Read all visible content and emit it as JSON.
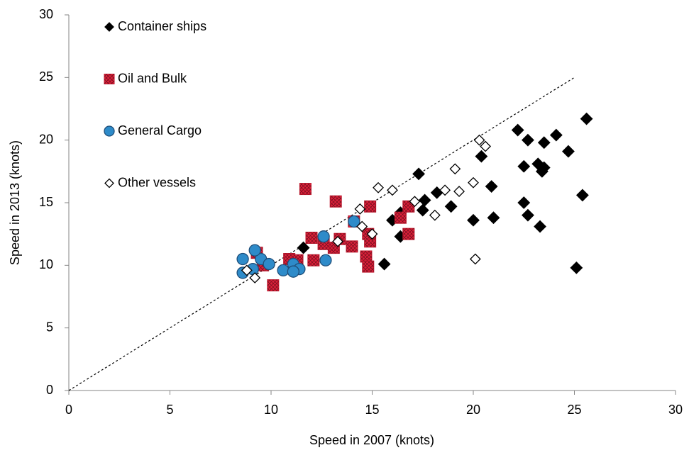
{
  "chart_data": {
    "type": "scatter",
    "xlabel": "Speed in 2007 (knots)",
    "ylabel": "Speed in 2013 (knots)",
    "xlim": [
      0,
      30
    ],
    "ylim": [
      0,
      30
    ],
    "xticks": [
      0,
      5,
      10,
      15,
      20,
      25,
      30
    ],
    "yticks": [
      0,
      5,
      10,
      15,
      20,
      25,
      30
    ],
    "grid": false,
    "legend": "upper left",
    "reference_line": {
      "x": [
        0,
        25
      ],
      "y": [
        0,
        25
      ]
    },
    "series": [
      {
        "name": "Container ships",
        "marker": "diamond",
        "color": "#000000",
        "x": [
          25.6,
          22.2,
          22.7,
          24.1,
          23.5,
          24.7,
          20.4,
          22.5,
          23.2,
          23.4,
          23.5,
          17.3,
          20.9,
          18.2,
          17.6,
          25.4,
          22.5,
          17.5,
          18.9,
          22.7,
          21.0,
          20.0,
          16.0,
          23.3,
          16.4,
          11.6,
          15.6,
          25.1,
          16.4
        ],
        "y": [
          21.7,
          20.8,
          20.0,
          20.4,
          19.8,
          19.1,
          18.7,
          17.9,
          18.1,
          17.5,
          17.8,
          17.3,
          16.3,
          15.8,
          15.2,
          15.6,
          15.0,
          14.4,
          14.7,
          14.0,
          13.8,
          13.6,
          13.6,
          13.1,
          12.3,
          11.4,
          10.1,
          9.8,
          14.2
        ]
      },
      {
        "name": "Oil and Bulk",
        "marker": "square",
        "color": "#e0203a",
        "x": [
          11.7,
          13.2,
          14.9,
          16.8,
          14.1,
          16.4,
          16.8,
          12.0,
          13.4,
          14.0,
          13.1,
          14.9,
          14.7,
          14.8,
          12.1,
          10.9,
          9.3,
          9.6,
          10.1,
          11.3,
          14.8,
          12.6
        ],
        "y": [
          16.1,
          15.1,
          14.7,
          14.7,
          13.5,
          13.8,
          12.5,
          12.2,
          12.1,
          11.5,
          11.4,
          11.9,
          10.7,
          9.9,
          10.4,
          10.5,
          11.0,
          10.0,
          8.4,
          10.4,
          12.5,
          11.7
        ]
      },
      {
        "name": "General Cargo",
        "marker": "circle",
        "color": "#2e8bc9",
        "x": [
          9.5,
          9.2,
          8.6,
          8.6,
          9.9,
          10.6,
          11.1,
          11.4,
          12.6,
          12.7,
          14.1,
          9.1,
          11.1
        ],
        "y": [
          10.5,
          11.2,
          10.5,
          9.4,
          10.1,
          9.6,
          10.1,
          9.7,
          12.3,
          10.4,
          13.5,
          9.7,
          9.5
        ]
      },
      {
        "name": "Other vessels",
        "marker": "open-diamond",
        "color": "#000000",
        "x": [
          20.3,
          20.6,
          19.1,
          16.0,
          15.3,
          20.0,
          19.3,
          18.6,
          17.1,
          18.1,
          14.4,
          20.1,
          14.5,
          13.3,
          15.0,
          9.2,
          8.8
        ],
        "y": [
          20.0,
          19.5,
          17.7,
          16.0,
          16.2,
          16.6,
          15.9,
          16.0,
          15.1,
          14.0,
          14.5,
          10.5,
          13.1,
          11.9,
          12.5,
          9.0,
          9.6
        ]
      }
    ]
  }
}
